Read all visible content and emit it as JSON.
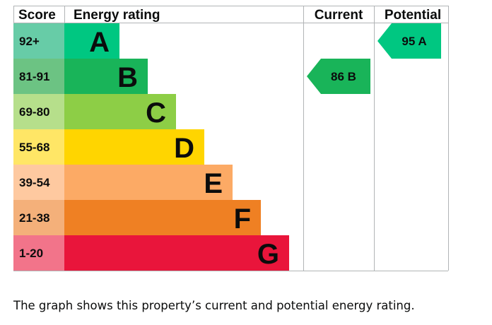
{
  "headers": {
    "score": "Score",
    "rating": "Energy rating",
    "current": "Current",
    "potential": "Potential"
  },
  "chart_data": {
    "type": "bar",
    "categories": [
      "A",
      "B",
      "C",
      "D",
      "E",
      "F",
      "G"
    ],
    "score_ranges": [
      "92+",
      "81-91",
      "69-80",
      "55-68",
      "39-54",
      "21-38",
      "1-20"
    ],
    "bar_colors": [
      "#00c781",
      "#19b459",
      "#8dce46",
      "#ffd500",
      "#fcaa65",
      "#ef8023",
      "#e9153b"
    ],
    "score_colors": [
      "#67cca7",
      "#6cc383",
      "#b6df8b",
      "#ffe666",
      "#fec9a0",
      "#f4b07a",
      "#f2748a"
    ],
    "current": {
      "score": 86,
      "band": "B",
      "label": "86 B",
      "color": "#19b459"
    },
    "potential": {
      "score": 95,
      "band": "A",
      "label": "95 A",
      "color": "#00c781"
    }
  },
  "caption": "The graph shows this property’s current and potential energy rating."
}
